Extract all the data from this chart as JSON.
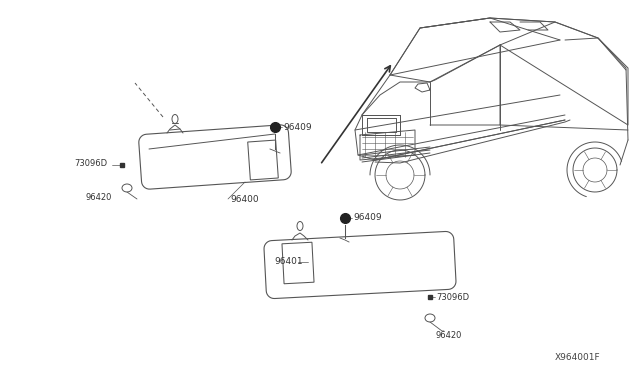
{
  "bg_color": "#ffffff",
  "line_color": "#555555",
  "label_color": "#333333",
  "diagram_id": "X964001F",
  "figsize": [
    6.4,
    3.72
  ],
  "dpi": 100
}
